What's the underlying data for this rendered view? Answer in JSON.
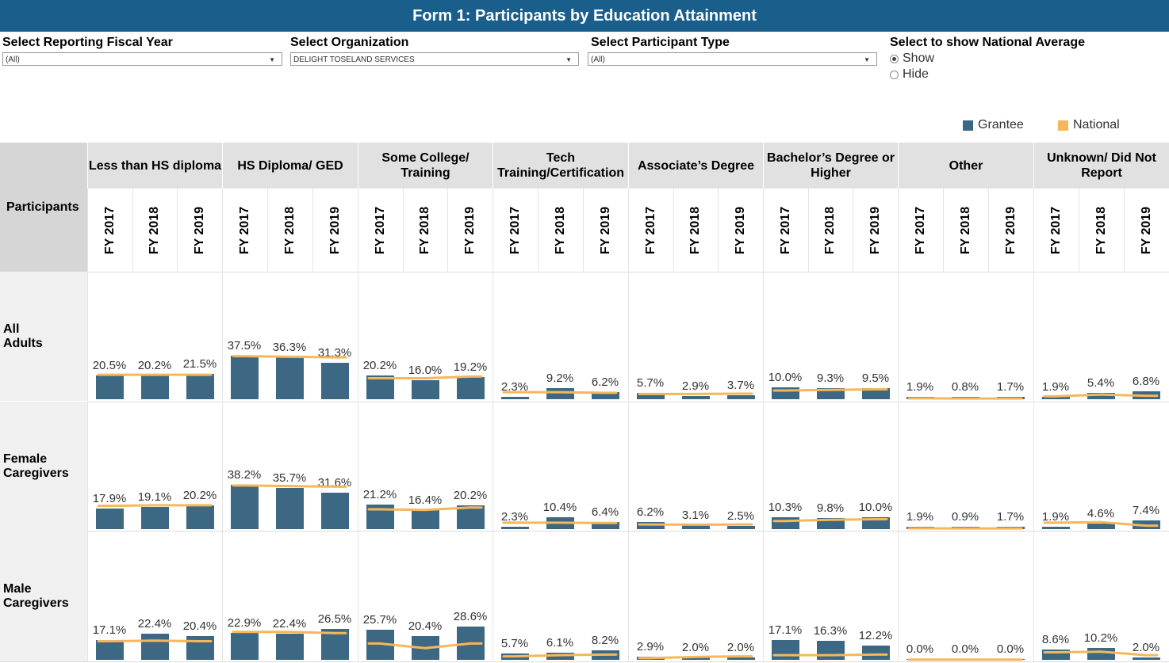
{
  "title": "Form 1: Participants by Education Attainment",
  "filters": {
    "fiscal_year": {
      "label": "Select Reporting Fiscal Year",
      "value": "(All)"
    },
    "organization": {
      "label": "Select Organization",
      "value": "DELIGHT TOSELAND SERVICES"
    },
    "participant_type": {
      "label": "Select Participant Type",
      "value": "(All)"
    },
    "national_average": {
      "label": "Select to show National Average",
      "options": [
        "Show",
        "Hide"
      ],
      "selected": "Show"
    }
  },
  "legend": {
    "grantee": {
      "label": "Grantee",
      "color": "#3d6883"
    },
    "national": {
      "label": "National",
      "color": "#f5b759"
    }
  },
  "row_header": "Participants",
  "chart_data": {
    "type": "bar",
    "title": "Form 1: Participants by Education Attainment",
    "categories": [
      "Less than HS diploma",
      "HS Diploma/ GED",
      "Some College/ Training",
      "Tech Training/Certification",
      "Associate’s Degree",
      "Bachelor’s Degree or Higher",
      "Other",
      "Unknown/ Did Not Report"
    ],
    "years": [
      "FY 2017",
      "FY 2018",
      "FY 2019"
    ],
    "unit": "%",
    "ylim": [
      0,
      40
    ],
    "rows": [
      {
        "name": "All Adults",
        "grantee": [
          [
            20.5,
            20.2,
            21.5
          ],
          [
            37.5,
            36.3,
            31.3
          ],
          [
            20.2,
            16.0,
            19.2
          ],
          [
            2.3,
            9.2,
            6.2
          ],
          [
            5.7,
            2.9,
            3.7
          ],
          [
            10.0,
            9.3,
            9.5
          ],
          [
            1.9,
            0.8,
            1.7
          ],
          [
            1.9,
            5.4,
            6.8
          ]
        ],
        "labels": [
          [
            "20.5%",
            "20.2%",
            "21.5%"
          ],
          [
            "37.5%",
            "36.3%",
            "31.3%"
          ],
          [
            "20.2%",
            "16.0%",
            "19.2%"
          ],
          [
            "2.3%",
            "9.2%",
            "6.2%"
          ],
          [
            "5.7%",
            "2.9%",
            "3.7%"
          ],
          [
            "10.0%",
            "9.3%",
            "9.5%"
          ],
          [
            "1.9%",
            "0.8%",
            "1.7%"
          ],
          [
            "1.9%",
            "5.4%",
            "6.8%"
          ]
        ],
        "national": [
          [
            21,
            21,
            21
          ],
          [
            37,
            36.5,
            36
          ],
          [
            18,
            18,
            19.5
          ],
          [
            6,
            6,
            5.5
          ],
          [
            4.5,
            4.5,
            4.8
          ],
          [
            7.5,
            8,
            8.5
          ],
          [
            0.8,
            0.6,
            0.6
          ],
          [
            2.5,
            4,
            3
          ]
        ]
      },
      {
        "name": "Female Caregivers",
        "grantee": [
          [
            17.9,
            19.1,
            20.2
          ],
          [
            38.2,
            35.7,
            31.6
          ],
          [
            21.2,
            16.4,
            20.2
          ],
          [
            2.3,
            10.4,
            6.4
          ],
          [
            6.2,
            3.1,
            2.5
          ],
          [
            10.3,
            9.8,
            10.0
          ],
          [
            1.9,
            0.9,
            1.7
          ],
          [
            1.9,
            4.6,
            7.4
          ]
        ],
        "labels": [
          [
            "17.9%",
            "19.1%",
            "20.2%"
          ],
          [
            "38.2%",
            "35.7%",
            "31.6%"
          ],
          [
            "21.2%",
            "16.4%",
            "20.2%"
          ],
          [
            "2.3%",
            "10.4%",
            "6.4%"
          ],
          [
            "6.2%",
            "3.1%",
            "2.5%"
          ],
          [
            "10.3%",
            "9.8%",
            "10.0%"
          ],
          [
            "1.9%",
            "0.9%",
            "1.7%"
          ],
          [
            "1.9%",
            "4.6%",
            "7.4%"
          ]
        ],
        "national": [
          [
            20,
            20.5,
            20.5
          ],
          [
            37.5,
            37,
            36.5
          ],
          [
            17,
            16.5,
            18.5
          ],
          [
            5.5,
            5.5,
            5.3
          ],
          [
            4,
            3.8,
            4
          ],
          [
            7,
            8,
            8.5
          ],
          [
            0.7,
            0.6,
            0.6
          ],
          [
            5.5,
            6,
            3
          ]
        ]
      },
      {
        "name": "Male Caregivers",
        "grantee": [
          [
            17.1,
            22.4,
            20.4
          ],
          [
            22.9,
            22.4,
            26.5
          ],
          [
            25.7,
            20.4,
            28.6
          ],
          [
            5.7,
            6.1,
            8.2
          ],
          [
            2.9,
            2.0,
            2.0
          ],
          [
            17.1,
            16.3,
            12.2
          ],
          [
            0.0,
            0.0,
            0.0
          ],
          [
            8.6,
            10.2,
            2.0
          ]
        ],
        "labels": [
          [
            "17.1%",
            "22.4%",
            "20.4%"
          ],
          [
            "22.9%",
            "22.4%",
            "26.5%"
          ],
          [
            "25.7%",
            "20.4%",
            "28.6%"
          ],
          [
            "5.7%",
            "6.1%",
            "8.2%"
          ],
          [
            "2.9%",
            "2.0%",
            "2.0%"
          ],
          [
            "17.1%",
            "16.3%",
            "12.2%"
          ],
          [
            "0.0%",
            "0.0%",
            "0.0%"
          ],
          [
            "8.6%",
            "10.2%",
            "2.0%"
          ]
        ],
        "national": [
          [
            16,
            16.5,
            16
          ],
          [
            24,
            24,
            23
          ],
          [
            14,
            10,
            14
          ],
          [
            3,
            4,
            4.5
          ],
          [
            1.5,
            2.5,
            3
          ],
          [
            4,
            4,
            4.5
          ],
          [
            0.2,
            0.2,
            0.2
          ],
          [
            6.5,
            7,
            4
          ]
        ]
      }
    ]
  }
}
